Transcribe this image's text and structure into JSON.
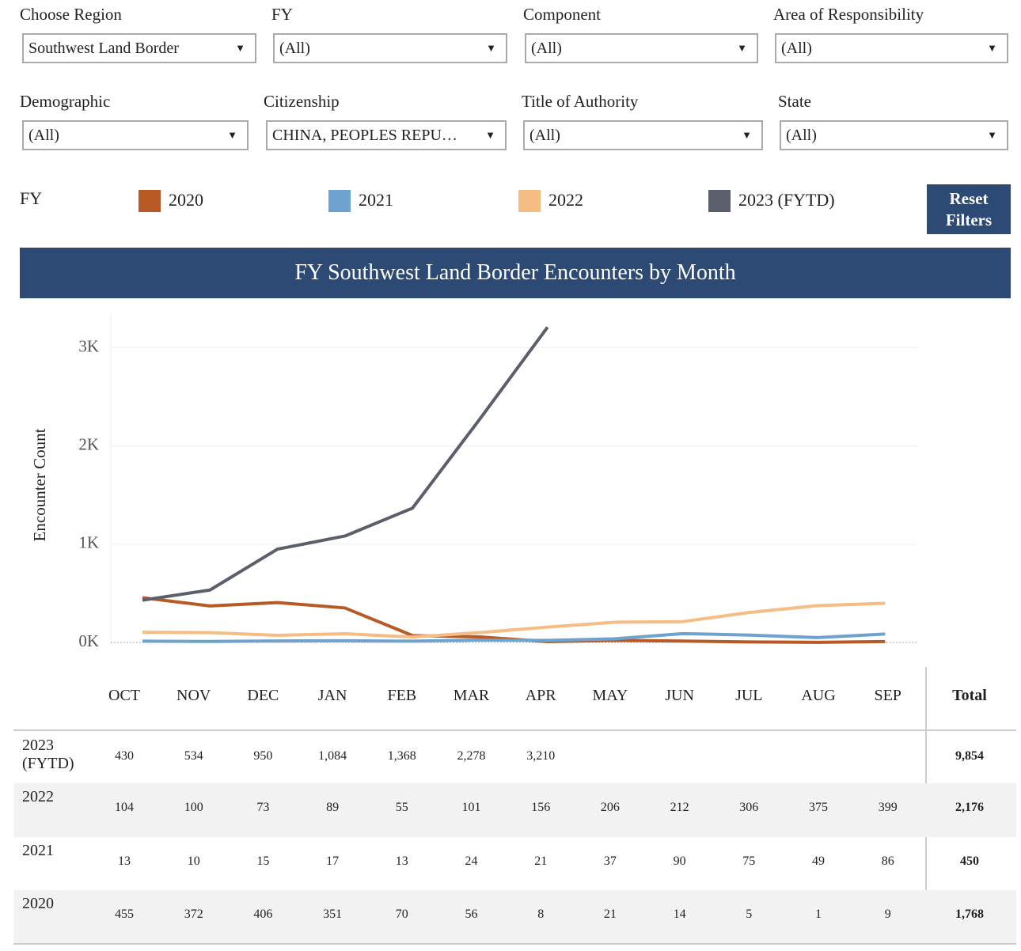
{
  "filters": [
    {
      "label": "Choose Region",
      "value": "Southwest Land Border"
    },
    {
      "label": "FY",
      "value": "(All)"
    },
    {
      "label": "Component",
      "value": "(All)"
    },
    {
      "label": "Area of Responsibility",
      "value": "(All)"
    },
    {
      "label": "Demographic",
      "value": "(All)"
    },
    {
      "label": "Citizenship",
      "value": "CHINA, PEOPLES REPU…"
    },
    {
      "label": "Title of Authority",
      "value": "(All)"
    },
    {
      "label": "State",
      "value": "(All)"
    }
  ],
  "legend_title": "FY",
  "reset_button": "Reset Filters",
  "chart_data": {
    "type": "line",
    "title": "FY Southwest Land Border Encounters by Month",
    "y_label": "Encounter Count",
    "categories": [
      "OCT",
      "NOV",
      "DEC",
      "JAN",
      "FEB",
      "MAR",
      "APR",
      "MAY",
      "JUN",
      "JUL",
      "AUG",
      "SEP"
    ],
    "series": [
      {
        "name": "2020",
        "color": "#b85a26",
        "values": [
          455,
          372,
          406,
          351,
          70,
          56,
          8,
          21,
          14,
          5,
          1,
          9
        ],
        "value_labels": [
          "455",
          "372",
          "406",
          "351",
          "70",
          "56",
          "8",
          "21",
          "14",
          "5",
          "1",
          "9"
        ]
      },
      {
        "name": "2021",
        "color": "#6fa3cf",
        "values": [
          13,
          10,
          15,
          17,
          13,
          24,
          21,
          37,
          90,
          75,
          49,
          86
        ],
        "value_labels": [
          "13",
          "10",
          "15",
          "17",
          "13",
          "24",
          "21",
          "37",
          "90",
          "75",
          "49",
          "86"
        ]
      },
      {
        "name": "2022",
        "color": "#f5bd84",
        "values": [
          104,
          100,
          73,
          89,
          55,
          101,
          156,
          206,
          212,
          306,
          375,
          399
        ],
        "value_labels": [
          "104",
          "100",
          "73",
          "89",
          "55",
          "101",
          "156",
          "206",
          "212",
          "306",
          "375",
          "399"
        ]
      },
      {
        "name": "2023 (FYTD)",
        "color": "#5b5f6b",
        "values": [
          430,
          534,
          950,
          1084,
          1368,
          2278,
          3210,
          null,
          null,
          null,
          null,
          null
        ],
        "value_labels": [
          "430",
          "534",
          "950",
          "1,084",
          "1,368",
          "2,278",
          "3,210",
          null,
          null,
          null,
          null,
          null
        ]
      }
    ],
    "ylim": [
      0,
      3360
    ],
    "yticks": [
      {
        "value": 0,
        "label": "0K"
      },
      {
        "value": 1000,
        "label": "1K"
      },
      {
        "value": 2000,
        "label": "2K"
      },
      {
        "value": 3000,
        "label": "3K"
      }
    ],
    "grid": true
  },
  "table": {
    "total_header": "Total",
    "totals": [
      "9,854",
      "2,176",
      "450",
      "1,768"
    ]
  }
}
